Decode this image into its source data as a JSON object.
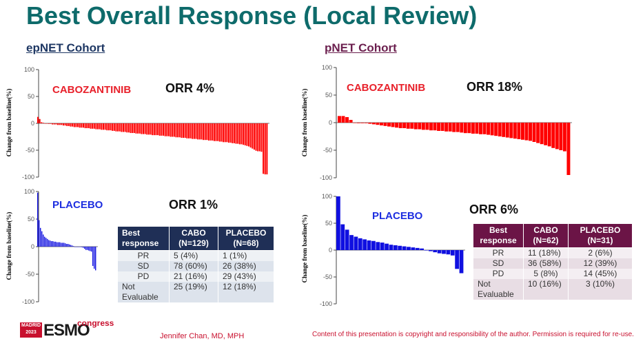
{
  "title": "Best Overall Response (Local Review)",
  "cohorts": {
    "ep": {
      "label": "epNET Cohort",
      "cabo_orr": "ORR 4%",
      "pla_orr": "ORR 1%"
    },
    "pn": {
      "label": "pNET Cohort",
      "cabo_orr": "ORR 18%",
      "pla_orr": "ORR 6%"
    }
  },
  "drug_labels": {
    "cabo": "CABOZANTINIB",
    "pla": "PLACEBO"
  },
  "y_axis_label": "Change from baseline(%)",
  "tables": {
    "ep": {
      "headers": [
        "Best response",
        "CABO (N=129)",
        "PLACEBO (N=68)"
      ],
      "rows": [
        [
          "PR",
          "5 (4%)",
          "1 (1%)"
        ],
        [
          "SD",
          "78 (60%)",
          "26 (38%)"
        ],
        [
          "PD",
          "21 (16%)",
          "29 (43%)"
        ],
        [
          "Not Evaluable",
          "25 (19%)",
          "12 (18%)"
        ]
      ]
    },
    "pn": {
      "headers": [
        "Best response",
        "CABO (N=62)",
        "PLACEBO (N=31)"
      ],
      "rows": [
        [
          "PR",
          "11 (18%)",
          "2 (6%)"
        ],
        [
          "SD",
          "36 (58%)",
          "12 (39%)"
        ],
        [
          "PD",
          "5 (8%)",
          "14 (45%)"
        ],
        [
          "Not Evaluable",
          "10 (16%)",
          "3 (10%)"
        ]
      ]
    }
  },
  "footer": {
    "author": "Jennifer Chan, MD, MPH",
    "copyright": "Content of this presentation is copyright and responsibility of the author. Permission is required for re-use.",
    "logo_madrid": "MADRID 2023",
    "logo_esmo": "ESMO",
    "logo_congress": "congress"
  },
  "colors": {
    "cabo": "#ff0000",
    "placebo": "#1010e0",
    "title": "#0e6b6b"
  },
  "chart_data": [
    {
      "type": "bar",
      "panel": "epNET Cohort - CABOZANTINIB",
      "ylabel": "Change from baseline(%)",
      "ylim": [
        -100,
        100
      ],
      "yticks": [
        100,
        50,
        0,
        -50,
        -100
      ],
      "annotation": "ORR 4%",
      "series": [
        {
          "name": "CABOZANTINIB",
          "color": "#ff0000",
          "values": [
            12,
            8,
            2,
            1,
            0,
            0,
            -1,
            -1,
            -2,
            -2,
            -2,
            -3,
            -3,
            -3,
            -4,
            -4,
            -5,
            -5,
            -6,
            -6,
            -7,
            -7,
            -7,
            -8,
            -8,
            -8,
            -9,
            -9,
            -9,
            -10,
            -10,
            -10,
            -11,
            -11,
            -11,
            -12,
            -12,
            -12,
            -13,
            -13,
            -13,
            -14,
            -14,
            -15,
            -15,
            -15,
            -16,
            -16,
            -16,
            -17,
            -17,
            -18,
            -18,
            -18,
            -19,
            -19,
            -19,
            -20,
            -20,
            -20,
            -21,
            -21,
            -21,
            -22,
            -22,
            -22,
            -22,
            -23,
            -23,
            -23,
            -24,
            -24,
            -24,
            -25,
            -25,
            -25,
            -26,
            -26,
            -26,
            -27,
            -27,
            -27,
            -28,
            -28,
            -28,
            -29,
            -29,
            -29,
            -30,
            -30,
            -30,
            -31,
            -31,
            -31,
            -32,
            -32,
            -32,
            -33,
            -33,
            -33,
            -34,
            -34,
            -35,
            -35,
            -35,
            -36,
            -36,
            -37,
            -37,
            -38,
            -38,
            -39,
            -39,
            -40,
            -41,
            -42,
            -43,
            -45,
            -47,
            -49,
            -51,
            -52,
            -52,
            -53,
            -94,
            -95,
            -95
          ]
        }
      ]
    },
    {
      "type": "bar",
      "panel": "epNET Cohort - PLACEBO",
      "ylabel": "Change from baseline(%)",
      "ylim": [
        -100,
        100
      ],
      "yticks": [
        100,
        50,
        0,
        -50,
        -100
      ],
      "annotation": "ORR 1%",
      "series": [
        {
          "name": "PLACEBO",
          "color": "#1010e0",
          "values": [
            98,
            48,
            34,
            28,
            22,
            18,
            16,
            14,
            12,
            11,
            10,
            10,
            9,
            9,
            8,
            8,
            8,
            7,
            7,
            7,
            6,
            5,
            5,
            4,
            3,
            2,
            1,
            0,
            0,
            0,
            0,
            0,
            -1,
            -2,
            -4,
            -6,
            -6,
            -7,
            -8,
            -9,
            -35,
            -40,
            -43
          ]
        }
      ]
    },
    {
      "type": "bar",
      "panel": "pNET Cohort - CABOZANTINIB",
      "ylabel": "Change from baseline(%)",
      "ylim": [
        -100,
        100
      ],
      "yticks": [
        100,
        50,
        0,
        -50,
        -100
      ],
      "annotation": "ORR 18%",
      "series": [
        {
          "name": "CABOZANTINIB",
          "color": "#ff0000",
          "values": [
            12,
            12,
            10,
            5,
            0,
            -1,
            -1,
            -1,
            -2,
            -3,
            -4,
            -5,
            -6,
            -7,
            -8,
            -9,
            -10,
            -10,
            -11,
            -11,
            -12,
            -12,
            -13,
            -13,
            -14,
            -14,
            -15,
            -15,
            -16,
            -16,
            -17,
            -17,
            -18,
            -19,
            -19,
            -20,
            -20,
            -21,
            -21,
            -22,
            -23,
            -24,
            -25,
            -26,
            -27,
            -28,
            -29,
            -30,
            -31,
            -32,
            -33,
            -35,
            -37,
            -39,
            -41,
            -43,
            -46,
            -48,
            -50,
            -52,
            -95
          ]
        }
      ]
    },
    {
      "type": "bar",
      "panel": "pNET Cohort - PLACEBO",
      "ylabel": "Change from baseline(%)",
      "ylim": [
        -100,
        100
      ],
      "yticks": [
        100,
        50,
        0,
        -50,
        -100
      ],
      "annotation": "ORR 6%",
      "series": [
        {
          "name": "PLACEBO",
          "color": "#1010e0",
          "values": [
            100,
            48,
            38,
            28,
            25,
            22,
            20,
            18,
            17,
            15,
            14,
            12,
            10,
            9,
            8,
            7,
            6,
            5,
            4,
            3,
            0,
            -2,
            -4,
            -6,
            -7,
            -8,
            -10,
            -35,
            -43
          ]
        }
      ]
    }
  ]
}
